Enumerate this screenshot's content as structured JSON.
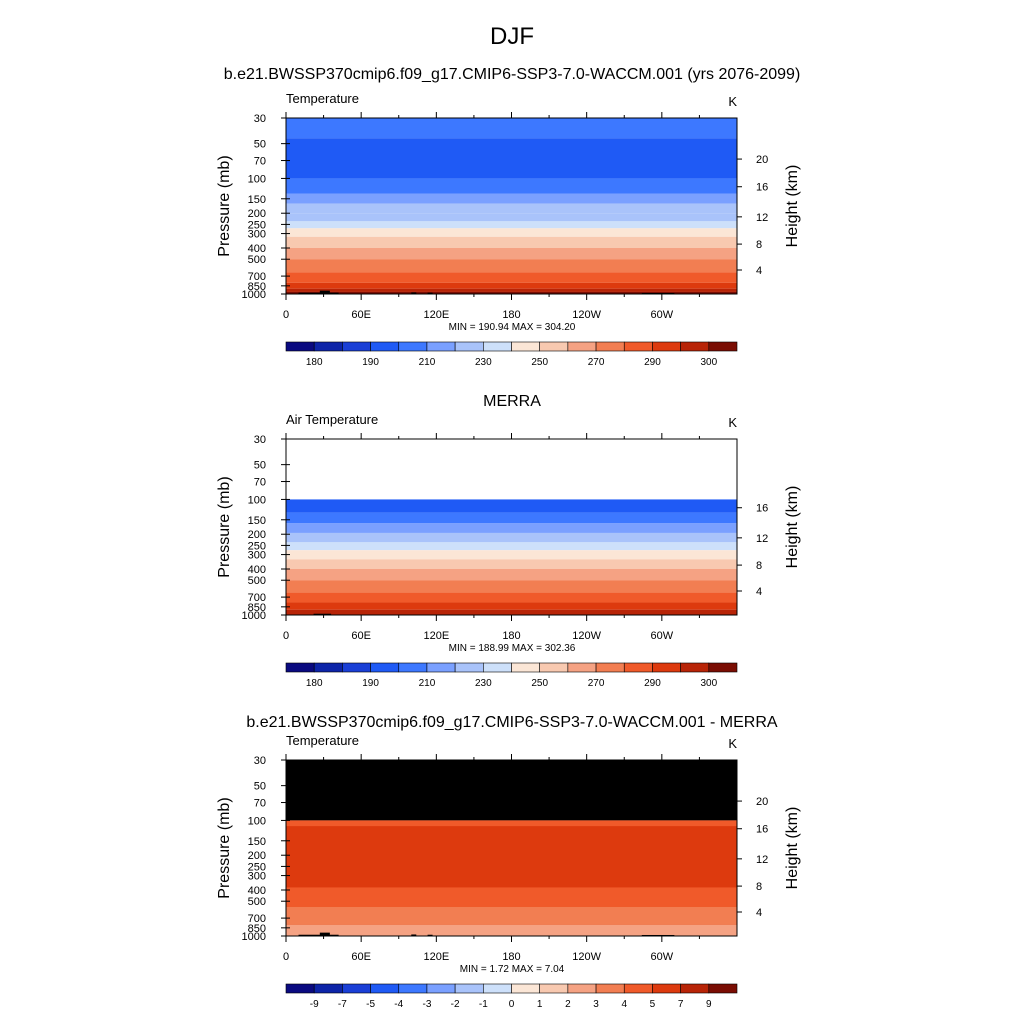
{
  "header": {
    "title": "DJF",
    "subtitle": "b.e21.BWSSP370cmip6.f09_g17.CMIP6-SSP3-7.0-WACCM.001 (yrs 2076-2099)"
  },
  "axes_common": {
    "pressure_label": "Pressure (mb)",
    "height_label": "Height (km)",
    "pressure_ticks": [
      "30",
      "50",
      "70",
      "100",
      "150",
      "200",
      "250",
      "300",
      "400",
      "500",
      "700",
      "850",
      "1000"
    ],
    "pressure_values": [
      30,
      50,
      70,
      100,
      150,
      200,
      250,
      300,
      400,
      500,
      700,
      850,
      1000
    ],
    "lon_ticks": [
      "0",
      "60E",
      "120E",
      "180",
      "120W",
      "60W"
    ],
    "lon_values": [
      0,
      60,
      120,
      180,
      240,
      300
    ],
    "lon_range": [
      0,
      360
    ],
    "p_range": [
      30,
      1000
    ]
  },
  "colors": {
    "temp_palette": [
      "#0a0a80",
      "#0d24a8",
      "#1a3fd6",
      "#1f5af5",
      "#3d78ff",
      "#7aa0ff",
      "#a9c3fa",
      "#cde0fa",
      "#fbe6d6",
      "#f8c9b0",
      "#f5a283",
      "#f27e52",
      "#f05a2a",
      "#dd3a0e",
      "#b82407",
      "#7a0d03"
    ],
    "diff_palette": [
      "#0a0a80",
      "#0d24a8",
      "#1a3fd6",
      "#1f5af5",
      "#3d78ff",
      "#7aa0ff",
      "#a9c3fa",
      "#cde0fa",
      "#fbe6d6",
      "#f8c9b0",
      "#f5a283",
      "#f27e52",
      "#f05a2a",
      "#dd3a0e",
      "#b82407",
      "#7a0d03"
    ],
    "missing": "#000000",
    "no_data": "#ffffff"
  },
  "chart_data": [
    {
      "type": "heatmap",
      "panel_title": "",
      "left_label": "Temperature",
      "units": "K",
      "stats": "MIN = 190.94  MAX = 304.20",
      "height_ticks": [
        "4",
        "8",
        "12",
        "16",
        "20"
      ],
      "height_ticks_p": [
        620,
        370,
        215,
        118,
        68
      ],
      "colorbar_labels": [
        "180",
        "190",
        "210",
        "230",
        "250",
        "270",
        "290",
        "300"
      ],
      "colorbar_label_positions": [
        1,
        3,
        5,
        7,
        9,
        11,
        13,
        15
      ],
      "levels": [
        {
          "p_top": 30,
          "p_bot": 45,
          "value": 203,
          "color_index": 4
        },
        {
          "p_top": 45,
          "p_bot": 100,
          "value": 198,
          "color_index": 3
        },
        {
          "p_top": 100,
          "p_bot": 135,
          "value": 205,
          "color_index": 4
        },
        {
          "p_top": 135,
          "p_bot": 165,
          "value": 212,
          "color_index": 5
        },
        {
          "p_top": 165,
          "p_bot": 200,
          "value": 220,
          "color_index": 6
        },
        {
          "p_top": 200,
          "p_bot": 235,
          "value": 226,
          "color_index": 6
        },
        {
          "p_top": 235,
          "p_bot": 270,
          "value": 233,
          "color_index": 7
        },
        {
          "p_top": 270,
          "p_bot": 320,
          "value": 245,
          "color_index": 8
        },
        {
          "p_top": 320,
          "p_bot": 400,
          "value": 255,
          "color_index": 9
        },
        {
          "p_top": 400,
          "p_bot": 500,
          "value": 265,
          "color_index": 10
        },
        {
          "p_top": 500,
          "p_bot": 650,
          "value": 275,
          "color_index": 11
        },
        {
          "p_top": 650,
          "p_bot": 800,
          "value": 285,
          "color_index": 12
        },
        {
          "p_top": 800,
          "p_bot": 900,
          "value": 293,
          "color_index": 13
        },
        {
          "p_top": 900,
          "p_bot": 960,
          "value": 298,
          "color_index": 14
        },
        {
          "p_top": 960,
          "p_bot": 1000,
          "value": 302,
          "color_index": 15
        }
      ],
      "missing_regions": [
        {
          "lon0": 10,
          "lon1": 42,
          "p_top": 975
        },
        {
          "lon0": 27,
          "lon1": 35,
          "p_top": 935
        },
        {
          "lon0": 100,
          "lon1": 104,
          "p_top": 970
        },
        {
          "lon0": 113,
          "lon1": 117,
          "p_top": 975
        },
        {
          "lon0": 284,
          "lon1": 310,
          "p_top": 980
        }
      ]
    },
    {
      "type": "heatmap",
      "panel_title": "MERRA",
      "left_label": "Air Temperature",
      "units": "K",
      "stats": "MIN = 188.99  MAX = 302.36",
      "height_ticks": [
        "4",
        "8",
        "12",
        "16"
      ],
      "height_ticks_p": [
        620,
        370,
        215,
        118
      ],
      "colorbar_labels": [
        "180",
        "190",
        "210",
        "230",
        "250",
        "270",
        "290",
        "300"
      ],
      "colorbar_label_positions": [
        1,
        3,
        5,
        7,
        9,
        11,
        13,
        15
      ],
      "levels": [
        {
          "p_top": 30,
          "p_bot": 100,
          "value": null,
          "color_index": -1
        },
        {
          "p_top": 100,
          "p_bot": 130,
          "value": 200,
          "color_index": 3
        },
        {
          "p_top": 130,
          "p_bot": 160,
          "value": 210,
          "color_index": 4
        },
        {
          "p_top": 160,
          "p_bot": 195,
          "value": 218,
          "color_index": 5
        },
        {
          "p_top": 195,
          "p_bot": 235,
          "value": 225,
          "color_index": 6
        },
        {
          "p_top": 235,
          "p_bot": 275,
          "value": 232,
          "color_index": 7
        },
        {
          "p_top": 275,
          "p_bot": 330,
          "value": 245,
          "color_index": 8
        },
        {
          "p_top": 330,
          "p_bot": 400,
          "value": 253,
          "color_index": 9
        },
        {
          "p_top": 400,
          "p_bot": 500,
          "value": 262,
          "color_index": 10
        },
        {
          "p_top": 500,
          "p_bot": 640,
          "value": 272,
          "color_index": 11
        },
        {
          "p_top": 640,
          "p_bot": 780,
          "value": 282,
          "color_index": 12
        },
        {
          "p_top": 780,
          "p_bot": 900,
          "value": 290,
          "color_index": 13
        },
        {
          "p_top": 900,
          "p_bot": 1000,
          "value": 297,
          "color_index": 14
        }
      ],
      "missing_regions": [
        {
          "lon0": 22,
          "lon1": 36,
          "p_top": 975
        }
      ]
    },
    {
      "type": "heatmap",
      "panel_title": "b.e21.BWSSP370cmip6.f09_g17.CMIP6-SSP3-7.0-WACCM.001 - MERRA",
      "left_label": "Temperature",
      "units": "K",
      "stats": "MIN =   1.72  MAX =   7.04",
      "height_ticks": [
        "4",
        "8",
        "12",
        "16",
        "20"
      ],
      "height_ticks_p": [
        620,
        370,
        215,
        118,
        68
      ],
      "colorbar_labels": [
        "-9",
        "-7",
        "-5",
        "-4",
        "-3",
        "-2",
        "-1",
        "0",
        "1",
        "2",
        "3",
        "4",
        "5",
        "7",
        "9"
      ],
      "colorbar_label_positions": [
        1,
        2,
        3,
        4,
        5,
        6,
        7,
        8,
        9,
        10,
        11,
        12,
        13,
        14,
        15
      ],
      "levels": [
        {
          "p_top": 30,
          "p_bot": 100,
          "value": null,
          "color_index": -2
        },
        {
          "p_top": 100,
          "p_bot": 1000,
          "value": 5.5,
          "color_index": 13
        }
      ],
      "bands": [
        {
          "p_top": 100,
          "p_bot": 112,
          "value": 4.5,
          "color_index": 12
        },
        {
          "p_top": 380,
          "p_bot": 560,
          "value": 4.5,
          "color_index": 12
        },
        {
          "p_top": 560,
          "p_bot": 800,
          "value": 3.5,
          "color_index": 11
        },
        {
          "p_top": 800,
          "p_bot": 1000,
          "value": 2.5,
          "color_index": 10
        }
      ],
      "missing_regions": [
        {
          "lon0": 10,
          "lon1": 42,
          "p_top": 975
        },
        {
          "lon0": 27,
          "lon1": 35,
          "p_top": 935
        },
        {
          "lon0": 100,
          "lon1": 104,
          "p_top": 970
        },
        {
          "lon0": 113,
          "lon1": 117,
          "p_top": 975
        },
        {
          "lon0": 284,
          "lon1": 310,
          "p_top": 980
        }
      ]
    }
  ]
}
